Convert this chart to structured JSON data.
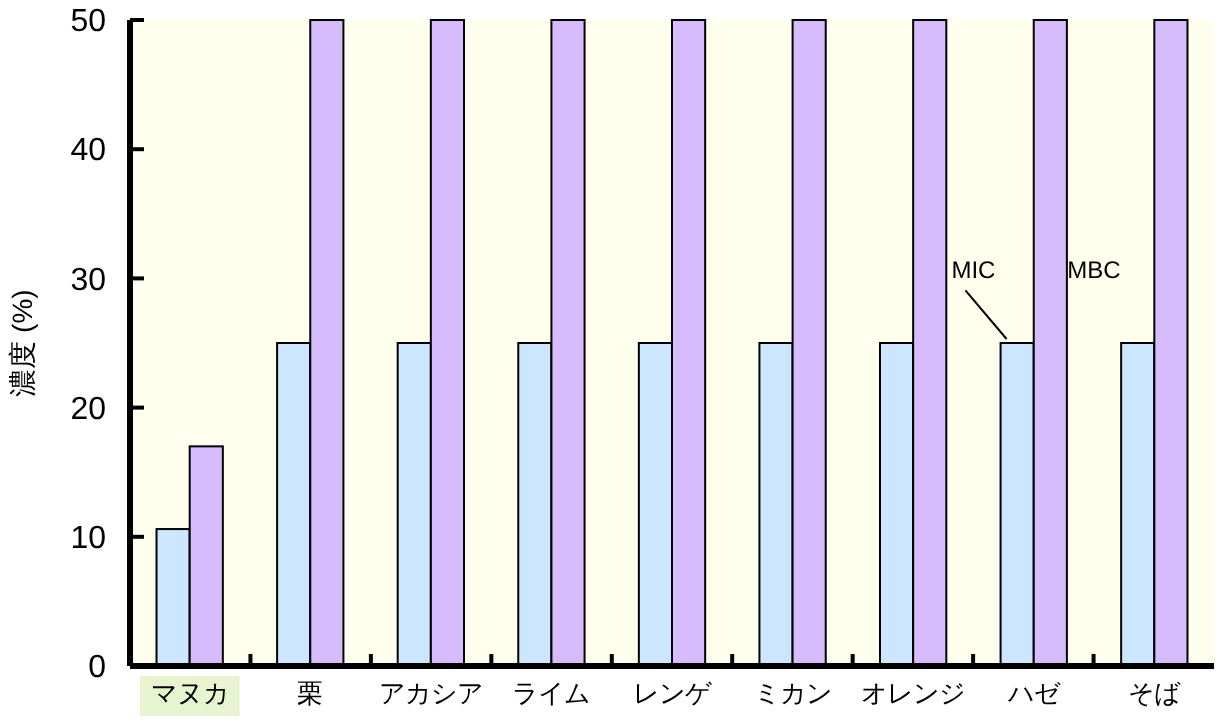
{
  "chart_data": {
    "type": "bar",
    "ylabel": "濃度 (%)",
    "categories": [
      "マヌカ",
      "栗",
      "アカシア",
      "ライム",
      "レンゲ",
      "ミカン",
      "オレンジ",
      "ハゼ",
      "そば"
    ],
    "series": [
      {
        "name": "MIC",
        "color": "#cce6ff",
        "values": [
          10.6,
          25,
          25,
          25,
          25,
          25,
          25,
          25,
          25
        ]
      },
      {
        "name": "MBC",
        "color": "#d6bbff",
        "values": [
          17,
          50,
          50,
          50,
          50,
          50,
          50,
          50,
          50
        ]
      }
    ],
    "ylim": [
      0,
      50
    ],
    "yticks": [
      0,
      10,
      20,
      30,
      40,
      50
    ],
    "grid": false,
    "legend": false
  }
}
